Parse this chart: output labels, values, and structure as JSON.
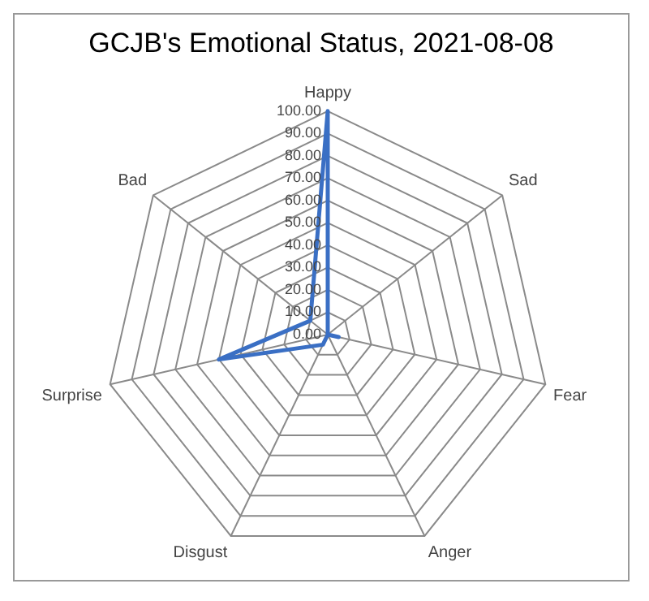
{
  "chart_data": {
    "type": "radar",
    "title": "GCJB's Emotional Status, 2021-08-08",
    "categories": [
      "Happy",
      "Sad",
      "Fear",
      "Anger",
      "Disgust",
      "Surprise",
      "Bad"
    ],
    "series": [
      {
        "color": "#3a6fc4",
        "values": [
          100,
          0,
          5,
          0,
          5,
          50,
          10
        ]
      }
    ],
    "ylim": [
      0,
      100
    ],
    "yticks": [
      {
        "value": 0,
        "label": "0.00"
      },
      {
        "value": 10,
        "label": "10.00"
      },
      {
        "value": 20,
        "label": "20.00"
      },
      {
        "value": 30,
        "label": "30.00"
      },
      {
        "value": 40,
        "label": "40.00"
      },
      {
        "value": 50,
        "label": "50.00"
      },
      {
        "value": 60,
        "label": "60.00"
      },
      {
        "value": 70,
        "label": "70.00"
      },
      {
        "value": 80,
        "label": "80.00"
      },
      {
        "value": 90,
        "label": "90.00"
      },
      {
        "value": 100,
        "label": "100.00"
      }
    ],
    "grid": true,
    "legend": false,
    "marker": "none",
    "line_style": "solid"
  }
}
